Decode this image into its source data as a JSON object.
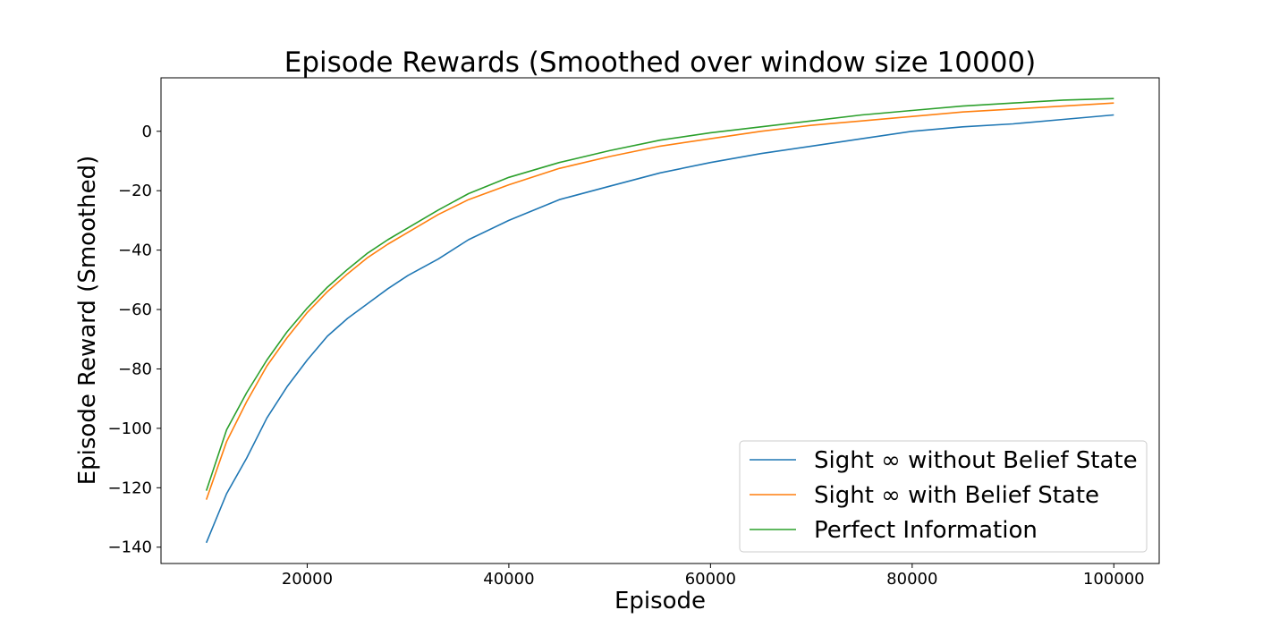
{
  "chart_data": {
    "type": "line",
    "title": "Episode Rewards (Smoothed over window size 10000)",
    "xlabel": "Episode",
    "ylabel": "Episode Reward (Smoothed)",
    "xlim": [
      5500,
      104500
    ],
    "ylim": [
      -145.5,
      18
    ],
    "xticks": [
      20000,
      40000,
      60000,
      80000,
      100000
    ],
    "xtick_labels": [
      "20000",
      "40000",
      "60000",
      "80000",
      "100000"
    ],
    "yticks": [
      -140,
      -120,
      -100,
      -80,
      -60,
      -40,
      -20,
      0
    ],
    "ytick_labels": [
      "−140",
      "−120",
      "−100",
      "−80",
      "−60",
      "−40",
      "−20",
      "0"
    ],
    "grid": false,
    "legend_position": "lower right",
    "x": [
      10000,
      12000,
      14000,
      16000,
      18000,
      20000,
      22000,
      24000,
      26000,
      28000,
      30000,
      33000,
      36000,
      40000,
      45000,
      50000,
      55000,
      60000,
      65000,
      70000,
      75000,
      80000,
      85000,
      90000,
      95000,
      100000
    ],
    "series": [
      {
        "name": "Sight ∞ without Belief State",
        "color": "#1f77b4",
        "values": [
          -138.5,
          -122,
          -110,
          -96.5,
          -86,
          -77,
          -69,
          -63,
          -58,
          -53,
          -48.5,
          -43,
          -36.5,
          -30,
          -23,
          -18.5,
          -14,
          -10.5,
          -7.5,
          -5,
          -2.5,
          0,
          1.5,
          2.5,
          4,
          5.5
        ]
      },
      {
        "name": "Sight ∞ with Belief State",
        "color": "#ff7f0e",
        "values": [
          -124,
          -104.5,
          -91,
          -79,
          -69.5,
          -61,
          -54,
          -48,
          -42.5,
          -38,
          -34,
          -28,
          -23,
          -18,
          -12.5,
          -8.5,
          -5,
          -2.5,
          0,
          2,
          3.5,
          5,
          6.5,
          7.5,
          8.5,
          9.5
        ]
      },
      {
        "name": "Perfect Information",
        "color": "#2ca02c",
        "values": [
          -121,
          -100.5,
          -88,
          -77,
          -67.5,
          -59.5,
          -52.5,
          -46.5,
          -41,
          -36.5,
          -32.5,
          -26.5,
          -21,
          -15.5,
          -10.5,
          -6.5,
          -3,
          -0.5,
          1.5,
          3.5,
          5.5,
          7,
          8.5,
          9.5,
          10.5,
          11
        ]
      }
    ]
  }
}
